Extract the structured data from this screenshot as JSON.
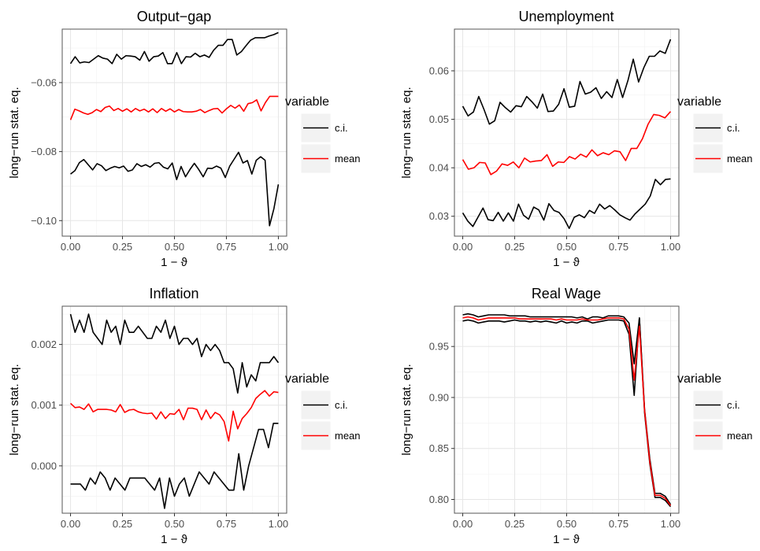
{
  "chart_data": [
    {
      "type": "line",
      "title": "Output−gap",
      "xlabel": "1 − ϑ",
      "ylabel": "long−run stat. eq.",
      "xlim": [
        -0.04,
        1.04
      ],
      "ylim": [
        -0.1045,
        -0.0445
      ],
      "x_ticks": [
        0,
        0.25,
        0.5,
        0.75,
        1
      ],
      "x_tick_labels": [
        "0.00",
        "0.25",
        "0.50",
        "0.75",
        "1.00"
      ],
      "y_ticks": [
        -0.1,
        -0.08,
        -0.06
      ],
      "y_tick_labels": [
        "−0.10",
        "−0.08",
        "−0.06"
      ],
      "grid": true,
      "legend": {
        "title": "variable",
        "placement": "right",
        "entries": [
          {
            "label": "c.i.",
            "color": "#000000"
          },
          {
            "label": "mean",
            "color": "#ff0000"
          }
        ]
      },
      "series": [
        {
          "name": "c.i.",
          "color": "#000000",
          "values": [
            -0.0545,
            -0.0525,
            -0.0543,
            -0.054,
            -0.0542,
            -0.0532,
            -0.0522,
            -0.0529,
            -0.0532,
            -0.0545,
            -0.0518,
            -0.0532,
            -0.0522,
            -0.0523,
            -0.0525,
            -0.0535,
            -0.051,
            -0.0538,
            -0.0525,
            -0.0523,
            -0.0513,
            -0.0545,
            -0.0545,
            -0.0513,
            -0.0545,
            -0.0525,
            -0.0526,
            -0.0515,
            -0.0525,
            -0.052,
            -0.0527,
            -0.0506,
            -0.0492,
            -0.0492,
            -0.0475,
            -0.0475,
            -0.052,
            -0.051,
            -0.0493,
            -0.0477,
            -0.047,
            -0.047,
            -0.047,
            -0.0465,
            -0.0461,
            -0.0455
          ]
        },
        {
          "name": "c.i.",
          "color": "#000000",
          "values": [
            -0.0865,
            -0.0855,
            -0.0832,
            -0.0823,
            -0.0838,
            -0.0853,
            -0.0835,
            -0.0841,
            -0.0855,
            -0.0848,
            -0.0843,
            -0.0847,
            -0.0842,
            -0.0857,
            -0.0853,
            -0.0835,
            -0.0843,
            -0.0838,
            -0.0845,
            -0.0834,
            -0.0832,
            -0.0845,
            -0.085,
            -0.0833,
            -0.0881,
            -0.0843,
            -0.0873,
            -0.0852,
            -0.0834,
            -0.0852,
            -0.0873,
            -0.0848,
            -0.0849,
            -0.0842,
            -0.0848,
            -0.0875,
            -0.0842,
            -0.0822,
            -0.0802,
            -0.0833,
            -0.0826,
            -0.0865,
            -0.0825,
            -0.0815,
            -0.0825,
            -0.1015,
            -0.0965,
            -0.0895
          ]
        },
        {
          "name": "mean",
          "color": "#ff0000",
          "values": [
            -0.0708,
            -0.0677,
            -0.0682,
            -0.0688,
            -0.0692,
            -0.0687,
            -0.0678,
            -0.0684,
            -0.0672,
            -0.0668,
            -0.0681,
            -0.0675,
            -0.0683,
            -0.0676,
            -0.0685,
            -0.0675,
            -0.0682,
            -0.0677,
            -0.0685,
            -0.0676,
            -0.0687,
            -0.0675,
            -0.0683,
            -0.0676,
            -0.0685,
            -0.0678,
            -0.0684,
            -0.0685,
            -0.0685,
            -0.0683,
            -0.0678,
            -0.0687,
            -0.0681,
            -0.0676,
            -0.0675,
            -0.0688,
            -0.0676,
            -0.0666,
            -0.0674,
            -0.0665,
            -0.0683,
            -0.0661,
            -0.0658,
            -0.065,
            -0.0682,
            -0.0658,
            -0.064,
            -0.064,
            -0.064
          ]
        }
      ]
    },
    {
      "type": "line",
      "title": "Unemployment",
      "xlabel": "1 − ϑ",
      "ylabel": "long−run stat. eq.",
      "xlim": [
        -0.04,
        1.04
      ],
      "ylim": [
        0.0259,
        0.0686
      ],
      "x_ticks": [
        0,
        0.25,
        0.5,
        0.75,
        1
      ],
      "x_tick_labels": [
        "0.00",
        "0.25",
        "0.50",
        "0.75",
        "1.00"
      ],
      "y_ticks": [
        0.03,
        0.04,
        0.05,
        0.06
      ],
      "y_tick_labels": [
        "0.03",
        "0.04",
        "0.05",
        "0.06"
      ],
      "grid": true,
      "legend": {
        "title": "variable",
        "placement": "right",
        "entries": [
          {
            "label": "c.i.",
            "color": "#000000"
          },
          {
            "label": "mean",
            "color": "#ff0000"
          }
        ]
      },
      "series": [
        {
          "name": "c.i.",
          "color": "#000000",
          "values": [
            0.0527,
            0.0507,
            0.0515,
            0.0547,
            0.052,
            0.049,
            0.0497,
            0.0535,
            0.0524,
            0.0515,
            0.0528,
            0.0526,
            0.0547,
            0.0536,
            0.0523,
            0.0552,
            0.0516,
            0.0517,
            0.0531,
            0.0563,
            0.0525,
            0.0527,
            0.0578,
            0.0552,
            0.0556,
            0.0565,
            0.0543,
            0.0557,
            0.0545,
            0.0582,
            0.0545,
            0.058,
            0.0624,
            0.0577,
            0.0607,
            0.063,
            0.063,
            0.0641,
            0.0636,
            0.0665
          ]
        },
        {
          "name": "c.i.",
          "color": "#000000",
          "values": [
            0.0307,
            0.029,
            0.0279,
            0.0298,
            0.0317,
            0.0293,
            0.0291,
            0.0308,
            0.029,
            0.0307,
            0.029,
            0.0325,
            0.0302,
            0.0294,
            0.0319,
            0.0313,
            0.0292,
            0.0326,
            0.0312,
            0.0308,
            0.0295,
            0.0275,
            0.0298,
            0.0303,
            0.0297,
            0.0312,
            0.0306,
            0.0325,
            0.0315,
            0.0322,
            0.0313,
            0.0303,
            0.0297,
            0.0292,
            0.0305,
            0.0315,
            0.0325,
            0.0342,
            0.0376,
            0.0365,
            0.0376,
            0.0377
          ]
        },
        {
          "name": "mean",
          "color": "#ff0000",
          "values": [
            0.0417,
            0.0397,
            0.04,
            0.0411,
            0.041,
            0.0386,
            0.0393,
            0.0408,
            0.0405,
            0.0412,
            0.04,
            0.042,
            0.0412,
            0.0414,
            0.0415,
            0.0427,
            0.0403,
            0.0412,
            0.0411,
            0.0423,
            0.0418,
            0.0428,
            0.0422,
            0.0437,
            0.0425,
            0.0431,
            0.0427,
            0.0435,
            0.0433,
            0.0415,
            0.044,
            0.044,
            0.046,
            0.049,
            0.051,
            0.0508,
            0.0503,
            0.0516
          ]
        }
      ]
    },
    {
      "type": "line",
      "title": "Inflation",
      "xlabel": "1 − ϑ",
      "ylabel": "long−run stat. eq.",
      "xlim": [
        -0.04,
        1.04
      ],
      "ylim": [
        -0.00078,
        0.00263
      ],
      "x_ticks": [
        0,
        0.25,
        0.5,
        0.75,
        1
      ],
      "x_tick_labels": [
        "0.00",
        "0.25",
        "0.50",
        "0.75",
        "1.00"
      ],
      "y_ticks": [
        0,
        0.001,
        0.002
      ],
      "y_tick_labels": [
        "0.000",
        "0.001",
        "0.002"
      ],
      "grid": true,
      "legend": {
        "title": "variable",
        "placement": "right",
        "entries": [
          {
            "label": "c.i.",
            "color": "#000000"
          },
          {
            "label": "mean",
            "color": "#ff0000"
          }
        ]
      },
      "series": [
        {
          "name": "c.i.",
          "color": "#000000",
          "values": [
            0.0025,
            0.0022,
            0.0024,
            0.0022,
            0.0025,
            0.0022,
            0.0021,
            0.002,
            0.0024,
            0.0022,
            0.0023,
            0.002,
            0.0024,
            0.0022,
            0.0022,
            0.0023,
            0.0022,
            0.0021,
            0.0021,
            0.0023,
            0.0022,
            0.0024,
            0.0021,
            0.0023,
            0.002,
            0.0021,
            0.0021,
            0.002,
            0.0021,
            0.0018,
            0.002,
            0.0019,
            0.002,
            0.0019,
            0.0017,
            0.0017,
            0.0016,
            0.0012,
            0.0017,
            0.0013,
            0.0015,
            0.0014,
            0.0017,
            0.0017,
            0.0017,
            0.0018,
            0.0017
          ]
        },
        {
          "name": "c.i.",
          "color": "#000000",
          "values": [
            -0.0003,
            -0.0003,
            -0.0003,
            -0.0004,
            -0.0002,
            -0.0003,
            -0.0001,
            -0.0002,
            -0.0004,
            -0.0002,
            -0.0003,
            -0.0004,
            -0.0002,
            -0.0002,
            -0.0002,
            -0.0002,
            -0.0003,
            -0.0004,
            -0.0002,
            -0.0007,
            -0.0002,
            -0.0005,
            -0.0003,
            -0.0002,
            -0.0005,
            -0.0003,
            -0.0001,
            -0.0002,
            -0.0003,
            -0.0001,
            -0.0002,
            -0.0003,
            -0.0004,
            -0.0004,
            0.0002,
            -0.0004,
            0.0,
            0.0003,
            0.0006,
            0.0006,
            0.0003,
            0.0007,
            0.0007
          ]
        },
        {
          "name": "mean",
          "color": "#ff0000",
          "values": [
            0.00103,
            0.00096,
            0.00097,
            0.00093,
            0.00102,
            0.00089,
            0.00093,
            0.00093,
            0.00093,
            0.00092,
            0.00089,
            0.00101,
            0.00088,
            0.00092,
            0.00093,
            0.00089,
            0.00087,
            0.00086,
            0.00087,
            0.00077,
            0.00089,
            0.00078,
            0.00086,
            0.00085,
            0.00093,
            0.00076,
            0.00095,
            0.00095,
            0.00093,
            0.00076,
            0.00092,
            0.00078,
            0.00088,
            0.00084,
            0.00073,
            0.00041,
            0.0009,
            0.00061,
            0.00078,
            0.00086,
            0.00096,
            0.00111,
            0.00118,
            0.00124,
            0.00115,
            0.00122,
            0.00121
          ]
        }
      ]
    },
    {
      "type": "line",
      "title": "Real Wage",
      "xlabel": "1 − ϑ",
      "ylabel": "long−run stat. eq.",
      "xlim": [
        -0.04,
        1.04
      ],
      "ylim": [
        0.7865,
        0.9895
      ],
      "x_ticks": [
        0,
        0.25,
        0.5,
        0.75,
        1
      ],
      "x_tick_labels": [
        "0.00",
        "0.25",
        "0.50",
        "0.75",
        "1.00"
      ],
      "y_ticks": [
        0.8,
        0.85,
        0.9,
        0.95
      ],
      "y_tick_labels": [
        "0.80",
        "0.85",
        "0.90",
        "0.95"
      ],
      "grid": true,
      "legend": {
        "title": "variable",
        "placement": "right",
        "entries": [
          {
            "label": "c.i.",
            "color": "#000000"
          },
          {
            "label": "mean",
            "color": "#ff0000"
          }
        ]
      },
      "series": [
        {
          "name": "c.i.",
          "color": "#000000",
          "x": [
            0.0,
            0.025,
            0.05,
            0.075,
            0.1,
            0.125,
            0.15,
            0.175,
            0.2,
            0.225,
            0.25,
            0.275,
            0.3,
            0.325,
            0.35,
            0.375,
            0.4,
            0.425,
            0.45,
            0.475,
            0.5,
            0.525,
            0.55,
            0.575,
            0.6,
            0.625,
            0.65,
            0.675,
            0.7,
            0.725,
            0.75,
            0.775,
            0.8,
            0.825,
            0.85,
            0.875,
            0.9,
            0.925,
            0.95,
            0.975,
            1.0
          ],
          "values": [
            0.981,
            0.982,
            0.981,
            0.979,
            0.98,
            0.981,
            0.981,
            0.981,
            0.981,
            0.98,
            0.98,
            0.98,
            0.98,
            0.979,
            0.979,
            0.979,
            0.979,
            0.979,
            0.979,
            0.979,
            0.979,
            0.979,
            0.978,
            0.979,
            0.977,
            0.979,
            0.979,
            0.978,
            0.98,
            0.98,
            0.98,
            0.979,
            0.973,
            0.933,
            0.978,
            0.888,
            0.84,
            0.806,
            0.806,
            0.803,
            0.795
          ]
        },
        {
          "name": "c.i.",
          "color": "#000000",
          "x": [
            0.0,
            0.025,
            0.05,
            0.075,
            0.1,
            0.125,
            0.15,
            0.175,
            0.2,
            0.225,
            0.25,
            0.275,
            0.3,
            0.325,
            0.35,
            0.375,
            0.4,
            0.425,
            0.45,
            0.475,
            0.5,
            0.525,
            0.55,
            0.575,
            0.6,
            0.625,
            0.65,
            0.675,
            0.7,
            0.725,
            0.75,
            0.775,
            0.8,
            0.825,
            0.85,
            0.875,
            0.9,
            0.925,
            0.95,
            0.975,
            1.0
          ],
          "values": [
            0.975,
            0.976,
            0.975,
            0.973,
            0.974,
            0.975,
            0.975,
            0.975,
            0.974,
            0.975,
            0.976,
            0.975,
            0.975,
            0.974,
            0.975,
            0.974,
            0.975,
            0.974,
            0.973,
            0.975,
            0.973,
            0.974,
            0.973,
            0.975,
            0.975,
            0.973,
            0.974,
            0.975,
            0.976,
            0.976,
            0.976,
            0.975,
            0.962,
            0.902,
            0.978,
            0.885,
            0.835,
            0.802,
            0.802,
            0.799,
            0.793
          ]
        },
        {
          "name": "mean",
          "color": "#ff0000",
          "x": [
            0.0,
            0.025,
            0.05,
            0.075,
            0.1,
            0.125,
            0.15,
            0.175,
            0.2,
            0.225,
            0.25,
            0.275,
            0.3,
            0.325,
            0.35,
            0.375,
            0.4,
            0.425,
            0.45,
            0.475,
            0.5,
            0.525,
            0.55,
            0.575,
            0.6,
            0.625,
            0.65,
            0.675,
            0.7,
            0.725,
            0.75,
            0.775,
            0.8,
            0.825,
            0.85,
            0.875,
            0.9,
            0.925,
            0.95,
            0.975,
            1.0
          ],
          "values": [
            0.978,
            0.979,
            0.978,
            0.976,
            0.977,
            0.978,
            0.978,
            0.978,
            0.978,
            0.978,
            0.978,
            0.977,
            0.977,
            0.977,
            0.977,
            0.977,
            0.977,
            0.977,
            0.976,
            0.977,
            0.976,
            0.976,
            0.976,
            0.977,
            0.976,
            0.976,
            0.976,
            0.977,
            0.978,
            0.978,
            0.978,
            0.977,
            0.967,
            0.917,
            0.97,
            0.887,
            0.837,
            0.804,
            0.804,
            0.801,
            0.794
          ]
        }
      ]
    }
  ]
}
